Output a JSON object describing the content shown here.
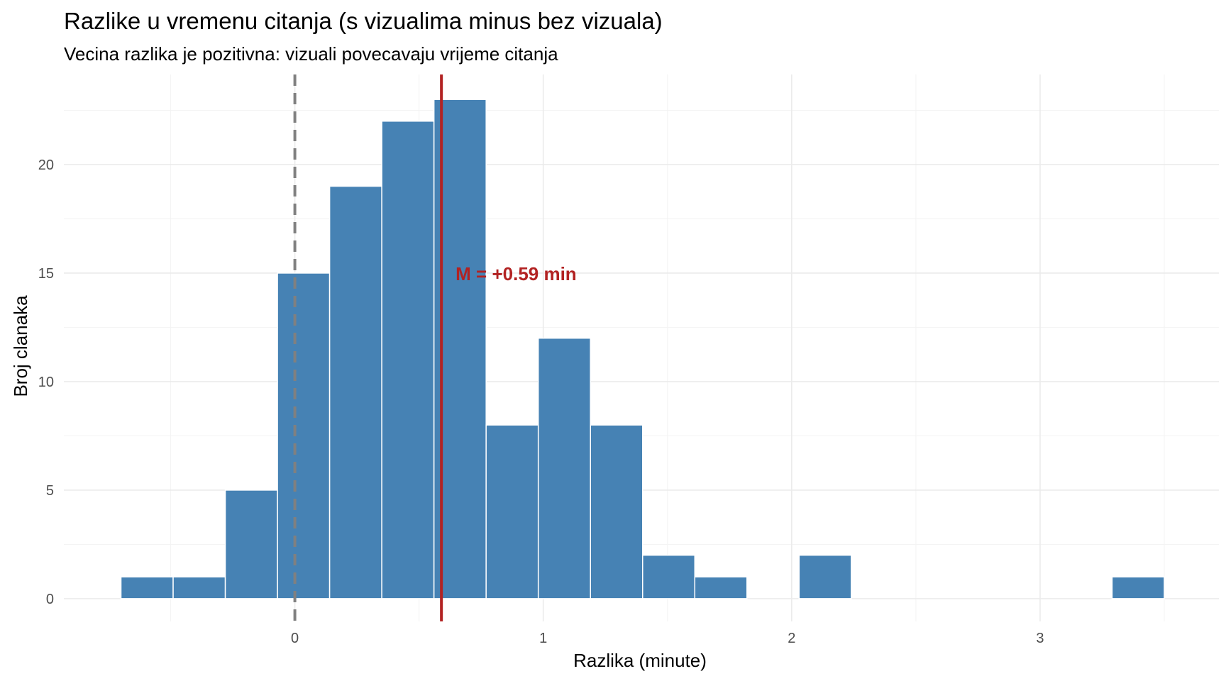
{
  "chart_data": {
    "type": "bar",
    "title": "Razlike u vremenu citanja (s vizualima minus bez vizuala)",
    "subtitle": "Vecina razlika je pozitivna: vizuali povecavaju vrijeme citanja",
    "xlabel": "Razlika (minute)",
    "ylabel": "Broj clanaka",
    "bin_width": 0.21,
    "bins": [
      {
        "x_start": -0.7,
        "x_end": -0.49,
        "count": 1
      },
      {
        "x_start": -0.49,
        "x_end": -0.28,
        "count": 1
      },
      {
        "x_start": -0.28,
        "x_end": -0.07,
        "count": 5
      },
      {
        "x_start": -0.07,
        "x_end": 0.14,
        "count": 15
      },
      {
        "x_start": 0.14,
        "x_end": 0.35,
        "count": 19
      },
      {
        "x_start": 0.35,
        "x_end": 0.56,
        "count": 22
      },
      {
        "x_start": 0.56,
        "x_end": 0.77,
        "count": 23
      },
      {
        "x_start": 0.77,
        "x_end": 0.98,
        "count": 8
      },
      {
        "x_start": 0.98,
        "x_end": 1.19,
        "count": 12
      },
      {
        "x_start": 1.19,
        "x_end": 1.4,
        "count": 8
      },
      {
        "x_start": 1.4,
        "x_end": 1.61,
        "count": 2
      },
      {
        "x_start": 1.61,
        "x_end": 1.82,
        "count": 1
      },
      {
        "x_start": 1.82,
        "x_end": 2.03,
        "count": 0
      },
      {
        "x_start": 2.03,
        "x_end": 2.24,
        "count": 2
      },
      {
        "x_start": 2.24,
        "x_end": 2.45,
        "count": 0
      },
      {
        "x_start": 2.45,
        "x_end": 2.66,
        "count": 0
      },
      {
        "x_start": 2.66,
        "x_end": 2.87,
        "count": 0
      },
      {
        "x_start": 2.87,
        "x_end": 3.08,
        "count": 0
      },
      {
        "x_start": 3.08,
        "x_end": 3.29,
        "count": 0
      },
      {
        "x_start": 3.29,
        "x_end": 3.5,
        "count": 1
      }
    ],
    "xlim": [
      -0.93,
      3.72
    ],
    "ylim": [
      -1.05,
      24.15
    ],
    "x_ticks": [
      0,
      1,
      2,
      3
    ],
    "y_ticks": [
      0,
      5,
      10,
      15,
      20
    ],
    "reference_line": {
      "x": 0,
      "style": "dashed",
      "color": "#808080"
    },
    "mean_line": {
      "x": 0.59,
      "color": "#B22222",
      "label": "M = +0.59 min",
      "label_y": 15
    },
    "bar_color": "#4682B4",
    "grid": true,
    "legend": "none"
  }
}
